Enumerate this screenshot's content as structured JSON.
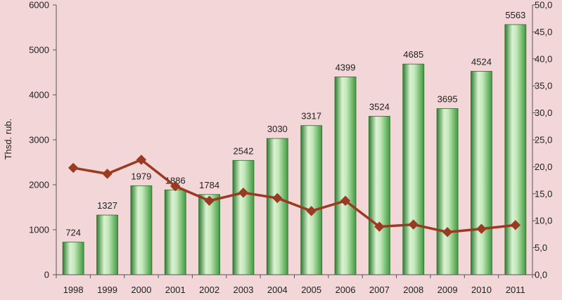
{
  "chart_data": {
    "type": "bar",
    "categories": [
      "1998",
      "1999",
      "2000",
      "2001",
      "2002",
      "2003",
      "2004",
      "2005",
      "2006",
      "2007",
      "2008",
      "2009",
      "2010",
      "2011"
    ],
    "series": [
      {
        "type": "bar",
        "axis": "left",
        "values": [
          724,
          1327,
          1979,
          1886,
          1784,
          2542,
          3030,
          3317,
          4399,
          3524,
          4685,
          3695,
          4524,
          5563
        ],
        "data_labels": [
          "724",
          "1327",
          "1979",
          "1886",
          "1784",
          "2542",
          "3030",
          "3317",
          "4399",
          "3524",
          "4685",
          "3695",
          "4524",
          "5563"
        ],
        "color": "#3f9a3f"
      },
      {
        "type": "line",
        "axis": "right",
        "values": [
          19.8,
          18.7,
          21.3,
          16.4,
          13.7,
          15.2,
          14.2,
          11.8,
          13.7,
          8.9,
          9.3,
          7.9,
          8.5,
          9.2
        ],
        "color": "#9b3a22",
        "marker": "diamond"
      }
    ],
    "ylabel": "Thsd. rub.",
    "ylim": [
      0,
      6000
    ],
    "y_ticks": [
      "0",
      "1000",
      "2000",
      "3000",
      "4000",
      "5000",
      "6000"
    ],
    "y2lim": [
      0,
      50
    ],
    "y2_ticks": [
      "0,0",
      "5,0",
      "10,0",
      "15,0",
      "20,0",
      "25,0",
      "30,0",
      "35,0",
      "40,0",
      "45,0",
      "50,0"
    ],
    "grid": false,
    "legend": "none",
    "colors": {
      "background": "#f2d6d8",
      "axis": "#555555"
    }
  }
}
